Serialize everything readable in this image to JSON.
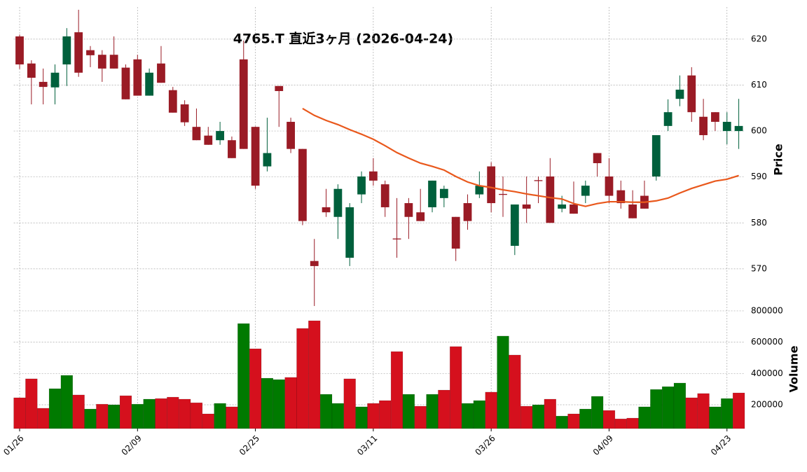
{
  "chart_data": {
    "type": "candlestick",
    "title": "4765.T  直近3ヶ月  (2026-04-24)",
    "categories": [
      "01/26",
      null,
      null,
      null,
      null,
      null,
      null,
      null,
      null,
      null,
      "02/09",
      null,
      null,
      null,
      null,
      null,
      null,
      null,
      null,
      null,
      "02/25",
      null,
      null,
      null,
      null,
      null,
      null,
      null,
      null,
      null,
      "03/11",
      null,
      null,
      null,
      null,
      null,
      null,
      null,
      null,
      null,
      "03/26",
      null,
      null,
      null,
      null,
      null,
      null,
      null,
      null,
      null,
      "04/09",
      null,
      null,
      null,
      null,
      null,
      null,
      null,
      null,
      null,
      "04/23",
      null
    ],
    "open": [
      620.6,
      614.7,
      610.7,
      609.5,
      614.5,
      621.5,
      617.6,
      616.6,
      616.6,
      613.8,
      615.6,
      607.7,
      614.7,
      608.9,
      605.8,
      600.9,
      599.0,
      598.0,
      598.0,
      615.6,
      600.9,
      592.3,
      609.8,
      602.0,
      596.1,
      571.7,
      583.4,
      581.3,
      572.4,
      586.2,
      591.2,
      588.4,
      576.6,
      584.3,
      582.3,
      583.4,
      585.4,
      581.3,
      584.3,
      586.2,
      592.3,
      586.3,
      575.0,
      584.0,
      589.3,
      590.1,
      583.1,
      584.0,
      585.9,
      595.2,
      590.1,
      587.1,
      584.0,
      585.9,
      590.1,
      601.1,
      607.0,
      612.1,
      603.1,
      604.1,
      600.0,
      600.0
    ],
    "high": [
      621.0,
      615.4,
      613.6,
      614.5,
      622.4,
      626.4,
      618.5,
      617.6,
      620.6,
      614.5,
      616.6,
      613.6,
      618.5,
      609.6,
      606.7,
      604.9,
      600.9,
      602.0,
      598.8,
      619.7,
      601.0,
      602.9,
      609.8,
      602.9,
      596.1,
      576.5,
      587.4,
      588.4,
      584.3,
      591.2,
      594.1,
      589.2,
      585.4,
      585.4,
      587.4,
      589.2,
      588.1,
      581.3,
      586.2,
      591.2,
      593.2,
      590.1,
      584.0,
      590.1,
      590.1,
      594.1,
      585.9,
      589.0,
      589.2,
      595.2,
      594.1,
      589.2,
      587.1,
      589.2,
      599.1,
      606.9,
      612.1,
      613.9,
      607.0,
      604.1,
      604.1,
      607.0
    ],
    "low": [
      613.5,
      605.8,
      605.8,
      605.8,
      609.8,
      611.8,
      613.9,
      610.7,
      613.6,
      606.9,
      607.7,
      607.7,
      610.5,
      604.0,
      601.1,
      598.0,
      597.0,
      597.0,
      594.1,
      596.1,
      587.4,
      591.2,
      600.9,
      595.2,
      579.5,
      561.9,
      581.3,
      576.5,
      570.6,
      584.3,
      588.1,
      581.3,
      572.4,
      576.5,
      580.4,
      582.3,
      583.4,
      571.7,
      578.5,
      585.4,
      582.3,
      581.3,
      573.0,
      580.0,
      584.3,
      580.0,
      582.3,
      582.0,
      584.3,
      590.1,
      584.3,
      583.1,
      581.0,
      583.1,
      589.2,
      600.0,
      605.4,
      602.0,
      598.0,
      600.0,
      597.1,
      596.1
    ],
    "close": [
      614.5,
      611.6,
      609.6,
      612.7,
      620.6,
      612.7,
      616.5,
      613.6,
      613.6,
      606.9,
      607.7,
      612.7,
      610.5,
      604.0,
      601.9,
      598.0,
      597.0,
      600.0,
      594.1,
      596.1,
      588.1,
      595.2,
      608.7,
      596.1,
      580.4,
      570.6,
      582.3,
      587.4,
      583.4,
      590.1,
      589.2,
      583.4,
      576.4,
      581.3,
      580.4,
      589.2,
      587.4,
      574.4,
      580.4,
      588.1,
      584.3,
      586.1,
      584.0,
      583.1,
      589.1,
      580.0,
      584.0,
      582.0,
      588.1,
      593.0,
      585.9,
      584.3,
      581.0,
      583.1,
      599.1,
      604.1,
      609.0,
      604.1,
      599.1,
      602.0,
      602.0,
      601.1
    ],
    "up_color": "#00603c",
    "down_color": "#9a1b25",
    "ylim": [
      562.2,
      627
    ],
    "yticks": [
      570,
      580,
      590,
      600,
      610,
      620
    ],
    "ylabel": "Price",
    "grid": true,
    "moving_average": {
      "color": "#e9581c",
      "values": [
        null,
        null,
        null,
        null,
        null,
        null,
        null,
        null,
        null,
        null,
        null,
        null,
        null,
        null,
        null,
        null,
        null,
        null,
        null,
        null,
        null,
        null,
        null,
        null,
        604.9,
        603.4,
        602.3,
        601.4,
        600.3,
        599.3,
        598.2,
        596.8,
        595.3,
        594.1,
        593.0,
        592.3,
        591.5,
        590.1,
        588.9,
        588.1,
        587.7,
        587.2,
        586.8,
        586.3,
        585.9,
        585.5,
        585.2,
        584.2,
        583.6,
        584.2,
        584.6,
        584.6,
        584.5,
        584.5,
        584.8,
        585.4,
        586.5,
        587.5,
        588.3,
        589.1,
        589.5,
        590.3
      ]
    },
    "volume": {
      "values": [
        245000,
        366000,
        178000,
        303000,
        388000,
        263000,
        173000,
        204000,
        200000,
        258000,
        204000,
        236000,
        240000,
        249000,
        236000,
        213000,
        142000,
        209000,
        187000,
        719000,
        558000,
        370000,
        361000,
        375000,
        688000,
        737000,
        267000,
        209000,
        366000,
        187000,
        209000,
        227000,
        540000,
        267000,
        191000,
        267000,
        294000,
        572000,
        209000,
        227000,
        281000,
        639000,
        518000,
        191000,
        200000,
        236000,
        128000,
        142000,
        173000,
        254000,
        164000,
        110000,
        115000,
        187000,
        298000,
        316000,
        339000,
        245000,
        272000,
        187000,
        240000,
        276000
      ],
      "up_color": "#007a00",
      "down_color": "#d5101d",
      "ylim": [
        48000,
        840000
      ],
      "yticks": [
        200000,
        400000,
        600000,
        800000
      ],
      "ylabel": "Volume"
    }
  }
}
